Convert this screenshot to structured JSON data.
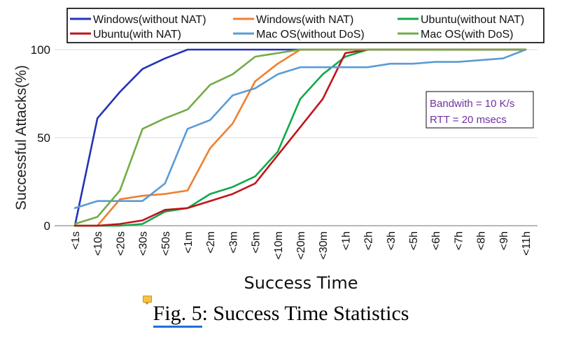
{
  "chart_data": {
    "type": "line",
    "title": "",
    "xlabel": "Success Time",
    "ylabel": "Successful Attacks(%)",
    "categories": [
      "<1s",
      "<10s",
      "<20s",
      "<30s",
      "<50s",
      "<1m",
      "<2m",
      "<3m",
      "<5m",
      "<10m",
      "<20m",
      "<30m",
      "<1h",
      "<2h",
      "<3h",
      "<5h",
      "<6h",
      "<7h",
      "<8h",
      "<9h",
      "<11h"
    ],
    "ylim": [
      0,
      100
    ],
    "yticks": [
      0,
      50,
      100
    ],
    "grid": "horizontal",
    "legend_position": "top",
    "series": [
      {
        "name": "Windows(without NAT)",
        "color": "#2233b8",
        "values": [
          0,
          61,
          76,
          89,
          95,
          100,
          100,
          100,
          100,
          100,
          100,
          100,
          100,
          100,
          100,
          100,
          100,
          100,
          100,
          100,
          100
        ]
      },
      {
        "name": "Windows(with NAT)",
        "color": "#ef7f2f",
        "values": [
          0,
          0,
          15,
          17,
          18,
          20,
          44,
          58,
          82,
          92,
          100,
          100,
          100,
          100,
          100,
          100,
          100,
          100,
          100,
          100,
          100
        ]
      },
      {
        "name": "Ubuntu(without NAT)",
        "color": "#13a84a",
        "values": [
          0,
          0,
          0,
          1,
          8,
          10,
          18,
          22,
          28,
          42,
          72,
          86,
          96,
          100,
          100,
          100,
          100,
          100,
          100,
          100,
          100
        ]
      },
      {
        "name": "Ubuntu(with NAT)",
        "color": "#c0141b",
        "values": [
          0,
          0,
          1,
          3,
          9,
          10,
          14,
          18,
          24,
          40,
          56,
          72,
          98,
          100,
          100,
          100,
          100,
          100,
          100,
          100,
          100
        ]
      },
      {
        "name": "Mac OS(without DoS)",
        "color": "#5b9bd5",
        "values": [
          10,
          14,
          14,
          14,
          24,
          55,
          60,
          74,
          78,
          86,
          90,
          90,
          90,
          90,
          92,
          92,
          93,
          93,
          94,
          95,
          100
        ]
      },
      {
        "name": "Mac OS(with DoS)",
        "color": "#71ad47",
        "values": [
          1,
          5,
          20,
          55,
          61,
          66,
          80,
          86,
          96,
          98,
          100,
          100,
          100,
          100,
          100,
          100,
          100,
          100,
          100,
          100,
          100
        ]
      }
    ],
    "annotations": [
      "Bandwith = 10 K/s",
      "RTT = 20 msecs"
    ],
    "annotation_color": "#7030a0"
  },
  "caption": {
    "fig_label": "Fig. 5",
    "text": ": Success Time Statistics"
  }
}
